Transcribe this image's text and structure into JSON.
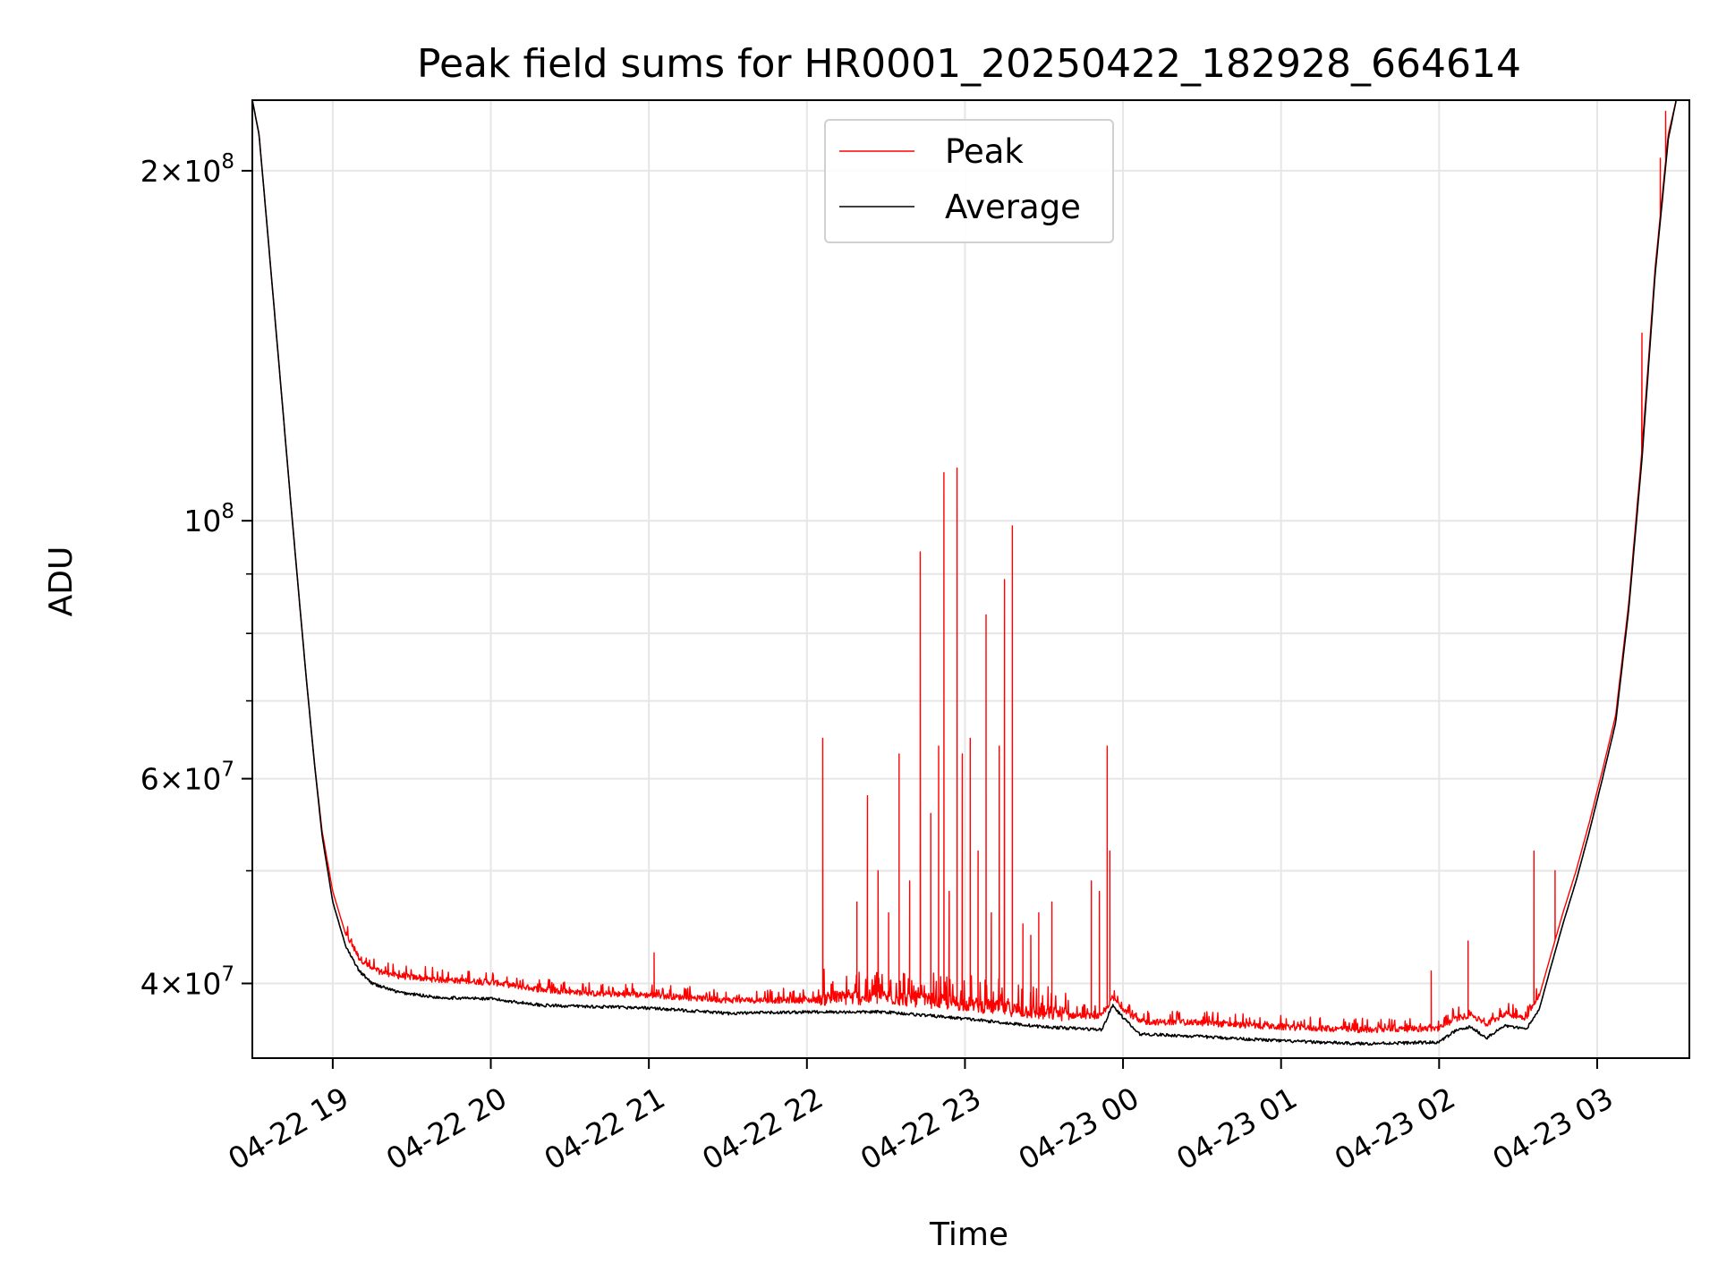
{
  "chart_data": {
    "type": "line",
    "title": "Peak field sums for HR0001_20250422_182928_664614",
    "xlabel": "Time",
    "ylabel": "ADU",
    "y_scale": "log",
    "ylim": [
      34500000,
      230000000
    ],
    "xlim": [
      "2025-04-22 18:29:28",
      "2025-04-23 03:35:00"
    ],
    "grid": true,
    "legend_position": "upper center",
    "x_ticks": [
      {
        "t": "2025-04-22 19:00",
        "label": "04-22 19"
      },
      {
        "t": "2025-04-22 20:00",
        "label": "04-22 20"
      },
      {
        "t": "2025-04-22 21:00",
        "label": "04-22 21"
      },
      {
        "t": "2025-04-22 22:00",
        "label": "04-22 22"
      },
      {
        "t": "2025-04-22 23:00",
        "label": "04-22 23"
      },
      {
        "t": "2025-04-23 00:00",
        "label": "04-23 00"
      },
      {
        "t": "2025-04-23 01:00",
        "label": "04-23 01"
      },
      {
        "t": "2025-04-23 02:00",
        "label": "04-23 02"
      },
      {
        "t": "2025-04-23 03:00",
        "label": "04-23 03"
      }
    ],
    "y_major_ticks": [
      {
        "v": 40000000,
        "base": "4",
        "exp": "7"
      },
      {
        "v": 60000000,
        "base": "6",
        "exp": "7"
      },
      {
        "v": 100000000,
        "base": "",
        "exp": "8"
      },
      {
        "v": 200000000,
        "base": "2",
        "exp": "8"
      }
    ],
    "y_minor_ticks": [
      50000000,
      70000000,
      80000000,
      90000000
    ],
    "series": [
      {
        "name": "Peak",
        "color": "#ff0000",
        "baseline": [
          [
            "2025-04-22 18:29:28",
            230000000
          ],
          [
            "2025-04-22 18:32",
            215000000
          ],
          [
            "2025-04-22 18:35",
            180000000
          ],
          [
            "2025-04-22 18:38",
            150000000
          ],
          [
            "2025-04-22 18:41",
            125000000
          ],
          [
            "2025-04-22 18:44",
            104000000
          ],
          [
            "2025-04-22 18:47",
            87000000
          ],
          [
            "2025-04-22 18:50",
            73000000
          ],
          [
            "2025-04-22 18:53",
            62000000
          ],
          [
            "2025-04-22 18:56",
            54000000
          ],
          [
            "2025-04-22 19:00",
            48000000
          ],
          [
            "2025-04-22 19:05",
            44000000
          ],
          [
            "2025-04-22 19:10",
            42000000
          ],
          [
            "2025-04-22 19:15",
            41000000
          ],
          [
            "2025-04-22 19:25",
            40500000
          ],
          [
            "2025-04-22 19:40",
            40200000
          ],
          [
            "2025-04-22 20:00",
            40000000
          ],
          [
            "2025-04-22 20:20",
            39400000
          ],
          [
            "2025-04-22 20:40",
            39100000
          ],
          [
            "2025-04-22 21:00",
            39000000
          ],
          [
            "2025-04-22 21:30",
            38600000
          ],
          [
            "2025-04-22 22:00",
            38600000
          ],
          [
            "2025-04-22 22:30",
            38700000
          ],
          [
            "2025-04-22 23:00",
            38200000
          ],
          [
            "2025-04-22 23:30",
            37500000
          ],
          [
            "2025-04-22 23:52",
            37400000
          ],
          [
            "2025-04-22 23:56",
            38800000
          ],
          [
            "2025-04-23 00:00",
            38000000
          ],
          [
            "2025-04-23 00:06",
            37000000
          ],
          [
            "2025-04-23 00:30",
            36900000
          ],
          [
            "2025-04-23 01:00",
            36600000
          ],
          [
            "2025-04-23 01:30",
            36400000
          ],
          [
            "2025-04-23 02:00",
            36500000
          ],
          [
            "2025-04-23 02:06",
            37200000
          ],
          [
            "2025-04-23 02:12",
            37500000
          ],
          [
            "2025-04-23 02:18",
            36800000
          ],
          [
            "2025-04-23 02:25",
            37600000
          ],
          [
            "2025-04-23 02:33",
            37300000
          ],
          [
            "2025-04-23 02:38",
            39000000
          ],
          [
            "2025-04-23 02:42",
            42000000
          ],
          [
            "2025-04-23 02:47",
            46000000
          ],
          [
            "2025-04-23 02:52",
            50000000
          ],
          [
            "2025-04-23 02:57",
            55000000
          ],
          [
            "2025-04-23 03:02",
            61000000
          ],
          [
            "2025-04-23 03:07",
            68000000
          ],
          [
            "2025-04-23 03:12",
            85000000
          ],
          [
            "2025-04-23 03:17",
            115000000
          ],
          [
            "2025-04-23 03:22",
            165000000
          ],
          [
            "2025-04-23 03:27",
            215000000
          ],
          [
            "2025-04-23 03:30",
            230000000
          ]
        ],
        "spikes": [
          [
            "2025-04-22 21:02",
            42500000
          ],
          [
            "2025-04-22 22:06",
            65000000
          ],
          [
            "2025-04-22 22:19",
            47000000
          ],
          [
            "2025-04-22 22:23",
            58000000
          ],
          [
            "2025-04-22 22:27",
            50000000
          ],
          [
            "2025-04-22 22:31",
            46000000
          ],
          [
            "2025-04-22 22:35",
            63000000
          ],
          [
            "2025-04-22 22:39",
            49000000
          ],
          [
            "2025-04-22 22:43",
            94000000
          ],
          [
            "2025-04-22 22:47",
            56000000
          ],
          [
            "2025-04-22 22:50",
            64000000
          ],
          [
            "2025-04-22 22:52",
            110000000
          ],
          [
            "2025-04-22 22:54",
            48000000
          ],
          [
            "2025-04-22 22:57",
            111000000
          ],
          [
            "2025-04-22 22:59",
            63000000
          ],
          [
            "2025-04-22 23:02",
            65000000
          ],
          [
            "2025-04-22 23:05",
            52000000
          ],
          [
            "2025-04-22 23:08",
            83000000
          ],
          [
            "2025-04-22 23:10",
            46000000
          ],
          [
            "2025-04-22 23:13",
            64000000
          ],
          [
            "2025-04-22 23:15",
            89000000
          ],
          [
            "2025-04-22 23:18",
            99000000
          ],
          [
            "2025-04-22 23:22",
            45000000
          ],
          [
            "2025-04-22 23:25",
            44000000
          ],
          [
            "2025-04-22 23:28",
            46000000
          ],
          [
            "2025-04-22 23:33",
            47000000
          ],
          [
            "2025-04-22 23:48",
            49000000
          ],
          [
            "2025-04-22 23:51",
            48000000
          ],
          [
            "2025-04-22 23:54",
            64000000
          ],
          [
            "2025-04-22 23:55",
            52000000
          ],
          [
            "2025-04-23 01:57",
            41000000
          ],
          [
            "2025-04-23 02:11",
            43500000
          ],
          [
            "2025-04-23 02:36",
            52000000
          ],
          [
            "2025-04-23 02:44",
            50000000
          ],
          [
            "2025-04-23 03:17",
            145000000
          ],
          [
            "2025-04-23 03:24",
            205000000
          ],
          [
            "2025-04-23 03:26",
            225000000
          ]
        ]
      },
      {
        "name": "Average",
        "color": "#000000",
        "points": [
          [
            "2025-04-22 18:29:28",
            230000000
          ],
          [
            "2025-04-22 18:32",
            215000000
          ],
          [
            "2025-04-22 18:35",
            180000000
          ],
          [
            "2025-04-22 18:38",
            150000000
          ],
          [
            "2025-04-22 18:41",
            125000000
          ],
          [
            "2025-04-22 18:44",
            104000000
          ],
          [
            "2025-04-22 18:47",
            87000000
          ],
          [
            "2025-04-22 18:50",
            73000000
          ],
          [
            "2025-04-22 18:53",
            62000000
          ],
          [
            "2025-04-22 18:56",
            53500000
          ],
          [
            "2025-04-22 19:00",
            47000000
          ],
          [
            "2025-04-22 19:05",
            43000000
          ],
          [
            "2025-04-22 19:10",
            41000000
          ],
          [
            "2025-04-22 19:15",
            40000000
          ],
          [
            "2025-04-22 19:25",
            39300000
          ],
          [
            "2025-04-22 19:40",
            38900000
          ],
          [
            "2025-04-22 20:00",
            38800000
          ],
          [
            "2025-04-22 20:20",
            38300000
          ],
          [
            "2025-04-22 20:40",
            38200000
          ],
          [
            "2025-04-22 21:00",
            38100000
          ],
          [
            "2025-04-22 21:30",
            37700000
          ],
          [
            "2025-04-22 22:00",
            37800000
          ],
          [
            "2025-04-22 22:30",
            37800000
          ],
          [
            "2025-04-22 23:00",
            37300000
          ],
          [
            "2025-04-22 23:30",
            36700000
          ],
          [
            "2025-04-22 23:52",
            36500000
          ],
          [
            "2025-04-22 23:56",
            38300000
          ],
          [
            "2025-04-23 00:00",
            37400000
          ],
          [
            "2025-04-23 00:06",
            36200000
          ],
          [
            "2025-04-23 00:30",
            36000000
          ],
          [
            "2025-04-23 01:00",
            35700000
          ],
          [
            "2025-04-23 01:30",
            35500000
          ],
          [
            "2025-04-23 02:00",
            35600000
          ],
          [
            "2025-04-23 02:06",
            36400000
          ],
          [
            "2025-04-23 02:12",
            36700000
          ],
          [
            "2025-04-23 02:18",
            35900000
          ],
          [
            "2025-04-23 02:25",
            36800000
          ],
          [
            "2025-04-23 02:33",
            36500000
          ],
          [
            "2025-04-23 02:38",
            38000000
          ],
          [
            "2025-04-23 02:42",
            41000000
          ],
          [
            "2025-04-23 02:47",
            45000000
          ],
          [
            "2025-04-23 02:52",
            49000000
          ],
          [
            "2025-04-23 02:57",
            54000000
          ],
          [
            "2025-04-23 03:02",
            60000000
          ],
          [
            "2025-04-23 03:07",
            67000000
          ],
          [
            "2025-04-23 03:12",
            84000000
          ],
          [
            "2025-04-23 03:17",
            113000000
          ],
          [
            "2025-04-23 03:22",
            163000000
          ],
          [
            "2025-04-23 03:27",
            213000000
          ],
          [
            "2025-04-23 03:30",
            230000000
          ]
        ]
      }
    ]
  }
}
